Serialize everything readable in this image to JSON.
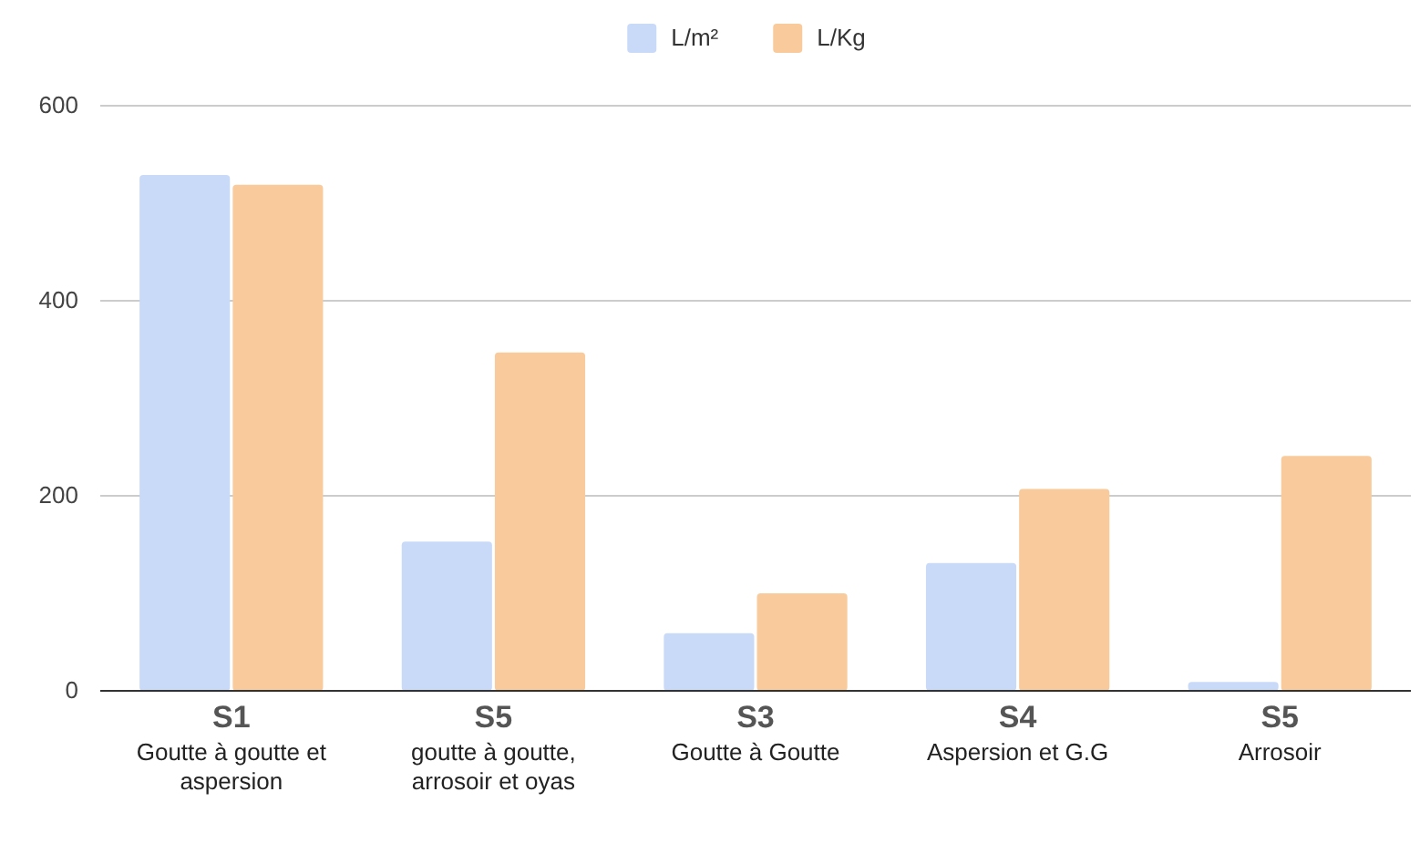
{
  "chart_data": {
    "type": "bar",
    "categories": [
      "S1\nGoutte à goutte et aspersion",
      "S5\ngoutte à goutte, arrosoir et oyas",
      "S3\nGoutte à Goutte",
      "S4\nAspersion et G.G",
      "S5\nArrosoir"
    ],
    "series": [
      {
        "name": "L/m²",
        "color": "#c9daf8",
        "values": [
          529,
          153,
          59,
          131,
          9
        ]
      },
      {
        "name": "L/Kg",
        "color": "#f9cb9c",
        "values": [
          519,
          347,
          100,
          207,
          241
        ]
      }
    ],
    "ylim": [
      0,
      600
    ],
    "yticks": [
      0,
      200,
      400,
      600
    ],
    "grid": "y",
    "legend": "top"
  }
}
